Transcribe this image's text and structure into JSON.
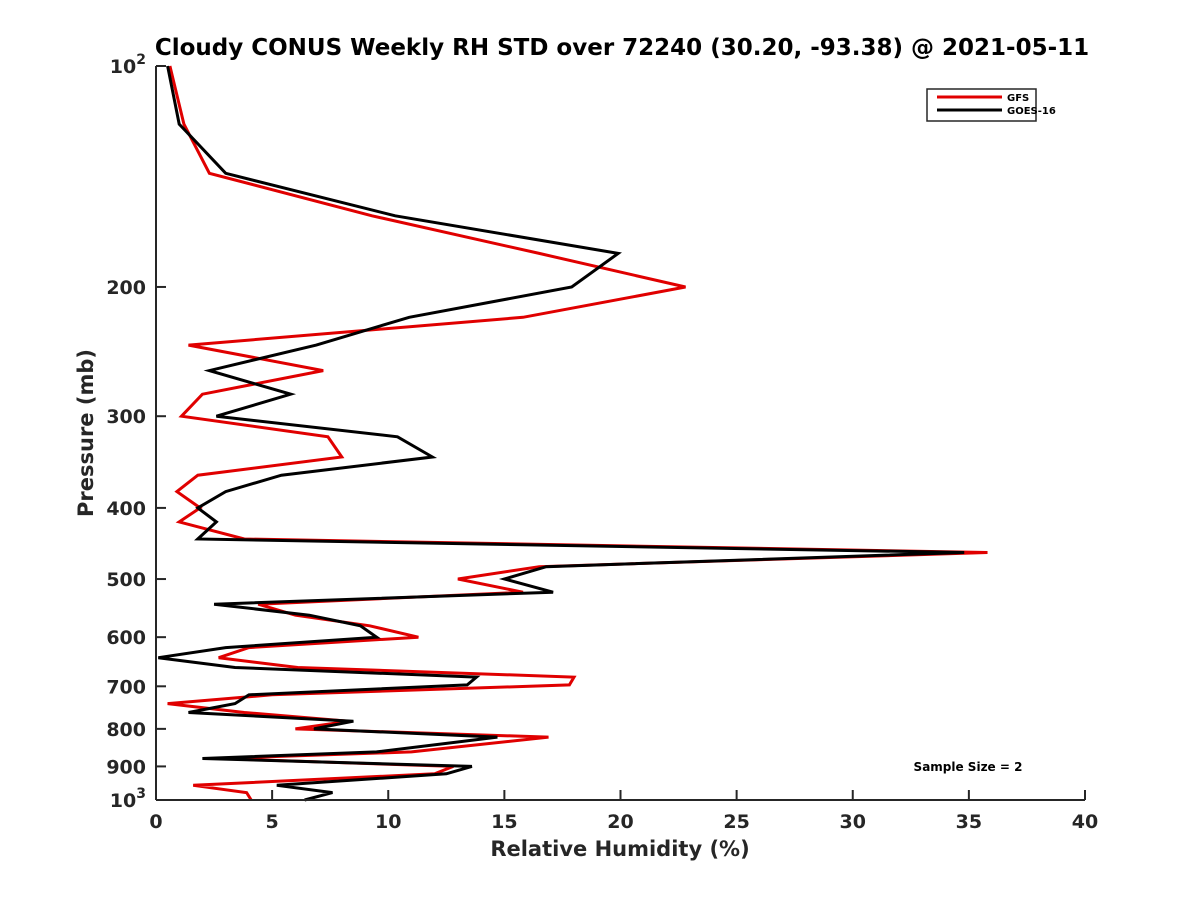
{
  "chart_data": {
    "type": "line",
    "title": "Cloudy CONUS Weekly RH STD over 72240 (30.20, -93.38) @ 2021-05-11",
    "xlabel": "Relative Humidity (%)",
    "ylabel": "Pressure (mb)",
    "xlim": [
      0,
      40
    ],
    "ylim": [
      100,
      1000
    ],
    "yscale": "log",
    "yreversed": true,
    "grid": false,
    "legend_position": "top-right",
    "x_ticks": [
      0,
      5,
      10,
      15,
      20,
      25,
      30,
      35,
      40
    ],
    "x_tick_labels": [
      "0",
      "5",
      "10",
      "15",
      "20",
      "25",
      "30",
      "35",
      "40"
    ],
    "y_ticks": [
      100,
      200,
      300,
      400,
      500,
      600,
      700,
      800,
      900,
      1000
    ],
    "y_tick_labels": [
      {
        "base": "10",
        "exp": "2"
      },
      {
        "base": "200",
        "exp": ""
      },
      {
        "base": "300",
        "exp": ""
      },
      {
        "base": "400",
        "exp": ""
      },
      {
        "base": "500",
        "exp": ""
      },
      {
        "base": "600",
        "exp": ""
      },
      {
        "base": "700",
        "exp": ""
      },
      {
        "base": "800",
        "exp": ""
      },
      {
        "base": "900",
        "exp": ""
      },
      {
        "base": "10",
        "exp": "3"
      }
    ],
    "annotation": "Sample Size = 2",
    "series": [
      {
        "name": "GFS",
        "color": "#e00000",
        "points": [
          [
            0.6,
            100
          ],
          [
            1.2,
            120
          ],
          [
            2.3,
            140
          ],
          [
            9.3,
            160
          ],
          [
            16.5,
            180
          ],
          [
            22.8,
            200
          ],
          [
            15.8,
            220
          ],
          [
            1.4,
            240
          ],
          [
            7.2,
            260
          ],
          [
            2.0,
            280
          ],
          [
            1.1,
            300
          ],
          [
            7.4,
            320
          ],
          [
            8.0,
            341
          ],
          [
            1.8,
            361
          ],
          [
            0.9,
            380
          ],
          [
            1.9,
            400
          ],
          [
            1.0,
            418
          ],
          [
            3.8,
            441
          ],
          [
            35.8,
            460
          ],
          [
            16.5,
            481
          ],
          [
            13.0,
            500
          ],
          [
            15.8,
            521
          ],
          [
            4.4,
            541
          ],
          [
            6.0,
            560
          ],
          [
            9.2,
            579
          ],
          [
            11.3,
            600
          ],
          [
            4.0,
            620
          ],
          [
            2.7,
            640
          ],
          [
            6.1,
            660
          ],
          [
            18.0,
            680
          ],
          [
            17.8,
            697
          ],
          [
            5.0,
            719
          ],
          [
            0.5,
            739
          ],
          [
            3.8,
            760
          ],
          [
            8.3,
            781
          ],
          [
            6.0,
            800
          ],
          [
            16.9,
            821
          ],
          [
            11.0,
            860
          ],
          [
            2.7,
            878
          ],
          [
            12.8,
            900
          ],
          [
            12.0,
            921
          ],
          [
            1.6,
            955
          ],
          [
            3.9,
            977
          ],
          [
            4.1,
            1000
          ]
        ]
      },
      {
        "name": "GOES-16",
        "color": "#000000",
        "points": [
          [
            0.5,
            100
          ],
          [
            1.0,
            120
          ],
          [
            3.0,
            140
          ],
          [
            10.3,
            160
          ],
          [
            19.9,
            180
          ],
          [
            17.9,
            200
          ],
          [
            10.9,
            220
          ],
          [
            6.9,
            240
          ],
          [
            2.3,
            260
          ],
          [
            5.8,
            280
          ],
          [
            2.6,
            300
          ],
          [
            10.4,
            320
          ],
          [
            11.9,
            341
          ],
          [
            5.4,
            361
          ],
          [
            3.0,
            380
          ],
          [
            1.8,
            400
          ],
          [
            2.6,
            418
          ],
          [
            1.8,
            441
          ],
          [
            34.8,
            460
          ],
          [
            16.8,
            481
          ],
          [
            15.0,
            500
          ],
          [
            17.1,
            521
          ],
          [
            2.5,
            541
          ],
          [
            6.6,
            560
          ],
          [
            8.8,
            579
          ],
          [
            9.5,
            600
          ],
          [
            3.0,
            620
          ],
          [
            0.1,
            640
          ],
          [
            3.4,
            660
          ],
          [
            13.8,
            680
          ],
          [
            13.4,
            697
          ],
          [
            4.0,
            719
          ],
          [
            3.4,
            739
          ],
          [
            1.4,
            760
          ],
          [
            8.5,
            781
          ],
          [
            6.8,
            800
          ],
          [
            14.7,
            821
          ],
          [
            9.5,
            860
          ],
          [
            2.0,
            878
          ],
          [
            13.6,
            900
          ],
          [
            12.5,
            921
          ],
          [
            5.2,
            955
          ],
          [
            7.6,
            977
          ],
          [
            6.4,
            1000
          ]
        ]
      }
    ]
  }
}
